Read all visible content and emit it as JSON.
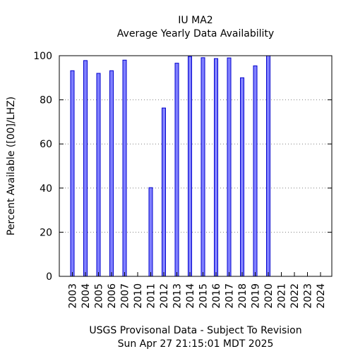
{
  "chart_data": {
    "type": "bar",
    "title": "IU MA2",
    "subtitle": "Average Yearly Data Availability",
    "xlabel": "",
    "ylabel": "Percent Available ([00]/LHZ)",
    "ylim": [
      0,
      100
    ],
    "yticks": [
      "0",
      "20",
      "40",
      "60",
      "80",
      "100"
    ],
    "grid": true,
    "categories": [
      "2003",
      "2004",
      "2005",
      "2006",
      "2007",
      "2010",
      "2011",
      "2012",
      "2013",
      "2014",
      "2015",
      "2016",
      "2017",
      "2018",
      "2019",
      "2020",
      "2021",
      "2022",
      "2023",
      "2024"
    ],
    "values": [
      93.2,
      97.8,
      92.0,
      93.2,
      98.0,
      0,
      40.2,
      76.3,
      96.6,
      99.6,
      99.1,
      98.7,
      99.0,
      90.0,
      95.4,
      100,
      0,
      0,
      0,
      0
    ],
    "bar_fill": "#8080ff",
    "bar_stroke": "#0000cc"
  },
  "footer": {
    "line1": "USGS Provisonal Data - Subject To Revision",
    "line2": "Sun Apr 27 21:15:01 MDT 2025"
  }
}
